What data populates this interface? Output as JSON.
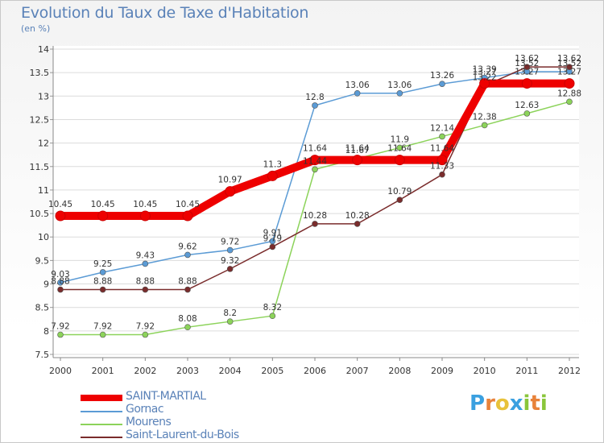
{
  "header": {
    "title": "Evolution du Taux de Taxe d'Habitation",
    "subtitle": "(en %)"
  },
  "brand": {
    "letters": [
      "P",
      "r",
      "o",
      "x",
      "i",
      "t",
      "i"
    ],
    "colors": [
      "#3aa0e0",
      "#e8823a",
      "#e8c23a",
      "#3aa0e0",
      "#8ac63a",
      "#e8823a",
      "#8ac63a"
    ]
  },
  "chart_data": {
    "type": "line",
    "x": [
      2000,
      2001,
      2002,
      2003,
      2004,
      2005,
      2006,
      2007,
      2008,
      2009,
      2010,
      2011,
      2012
    ],
    "ylim": [
      7.5,
      14
    ],
    "y_ticks": [
      7.5,
      8,
      8.5,
      9,
      9.5,
      10,
      10.5,
      11,
      11.5,
      12,
      12.5,
      13,
      13.5,
      14
    ],
    "y_tick_labels": [
      "7.5",
      "8",
      "8.5",
      "9",
      "9.5",
      "10",
      "10.5",
      "11",
      "11.5",
      "12",
      "12.5",
      "13",
      "13.5",
      "14"
    ],
    "grid": "horizontal",
    "legend_placement": "bottom-left",
    "series": [
      {
        "name": "SAINT-MARTIAL",
        "color": "#ee0000",
        "values": [
          10.45,
          10.45,
          10.45,
          10.45,
          10.97,
          11.3,
          11.64,
          11.64,
          11.64,
          11.64,
          13.27,
          13.27,
          13.27
        ],
        "labels": [
          "10.45",
          "10.45",
          "10.45",
          "10.45",
          "10.97",
          "11.3",
          "11.64",
          "11.64",
          "11.64",
          "11.64",
          "13.27",
          "13.27",
          "13.27"
        ]
      },
      {
        "name": "Gornac",
        "color": "#5b9bd5",
        "values": [
          9.03,
          9.25,
          9.43,
          9.62,
          9.72,
          9.91,
          12.8,
          13.06,
          13.06,
          13.26,
          13.39,
          13.52,
          13.52
        ],
        "labels": [
          "9.03",
          "9.25",
          "9.43",
          "9.62",
          "9.72",
          "9.91",
          "12.8",
          "13.06",
          "13.06",
          "13.26",
          "13.39",
          "13.52",
          "13.52"
        ]
      },
      {
        "name": "Mourens",
        "color": "#8cd35a",
        "values": [
          7.92,
          7.92,
          7.92,
          8.08,
          8.2,
          8.32,
          11.44,
          11.67,
          11.9,
          12.14,
          12.38,
          12.63,
          12.88
        ],
        "labels": [
          "7.92",
          "7.92",
          "7.92",
          "8.08",
          "8.2",
          "8.32",
          "11.44",
          "11.67",
          "11.9",
          "12.14",
          "12.38",
          "12.63",
          "12.88"
        ]
      },
      {
        "name": "Saint-Laurent-du-Bois",
        "color": "#7a2c2c",
        "values": [
          8.88,
          8.88,
          8.88,
          8.88,
          9.32,
          9.79,
          10.28,
          10.28,
          10.79,
          11.33,
          13.22,
          13.62,
          13.62
        ],
        "labels": [
          "8.88",
          "8.88",
          "8.88",
          "8.88",
          "9.32",
          "9.79",
          "10.28",
          "10.28",
          "10.79",
          "11.33",
          "13.22",
          "13.62",
          "13.62"
        ]
      }
    ]
  }
}
